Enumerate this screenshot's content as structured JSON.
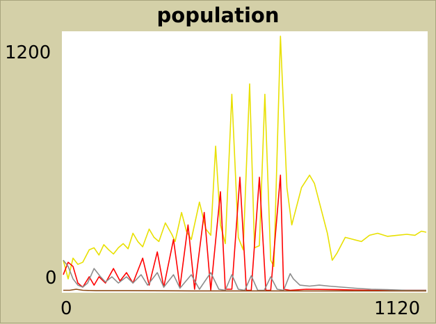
{
  "chart_data": {
    "type": "line",
    "title": "population",
    "xlim": [
      0,
      1120
    ],
    "ylim": [
      0,
      1200
    ],
    "x_tick_labels": [
      "0",
      "1120"
    ],
    "y_tick_labels": [
      "0",
      "1200"
    ],
    "series": [
      {
        "color": "#e8e000",
        "points": [
          [
            0,
            150
          ],
          [
            15,
            60
          ],
          [
            30,
            160
          ],
          [
            45,
            130
          ],
          [
            60,
            140
          ],
          [
            80,
            200
          ],
          [
            95,
            210
          ],
          [
            110,
            175
          ],
          [
            125,
            225
          ],
          [
            140,
            200
          ],
          [
            155,
            180
          ],
          [
            170,
            210
          ],
          [
            185,
            230
          ],
          [
            200,
            205
          ],
          [
            215,
            280
          ],
          [
            230,
            240
          ],
          [
            245,
            215
          ],
          [
            265,
            300
          ],
          [
            280,
            260
          ],
          [
            295,
            240
          ],
          [
            315,
            330
          ],
          [
            335,
            275
          ],
          [
            345,
            240
          ],
          [
            365,
            380
          ],
          [
            380,
            290
          ],
          [
            395,
            250
          ],
          [
            420,
            430
          ],
          [
            440,
            300
          ],
          [
            455,
            270
          ],
          [
            470,
            700
          ],
          [
            485,
            320
          ],
          [
            500,
            230
          ],
          [
            520,
            950
          ],
          [
            540,
            260
          ],
          [
            555,
            200
          ],
          [
            575,
            1000
          ],
          [
            590,
            210
          ],
          [
            605,
            220
          ],
          [
            622,
            950
          ],
          [
            640,
            150
          ],
          [
            650,
            120
          ],
          [
            670,
            1230
          ],
          [
            690,
            500
          ],
          [
            705,
            320
          ],
          [
            735,
            500
          ],
          [
            760,
            560
          ],
          [
            775,
            520
          ],
          [
            795,
            400
          ],
          [
            815,
            280
          ],
          [
            830,
            150
          ],
          [
            845,
            185
          ],
          [
            870,
            260
          ],
          [
            895,
            250
          ],
          [
            920,
            240
          ],
          [
            945,
            270
          ],
          [
            970,
            280
          ],
          [
            1000,
            265
          ],
          [
            1030,
            270
          ],
          [
            1060,
            275
          ],
          [
            1085,
            270
          ],
          [
            1105,
            290
          ],
          [
            1120,
            285
          ]
        ]
      },
      {
        "color": "#ff0000",
        "points": [
          [
            0,
            80
          ],
          [
            15,
            140
          ],
          [
            30,
            120
          ],
          [
            45,
            40
          ],
          [
            60,
            20
          ],
          [
            80,
            70
          ],
          [
            95,
            30
          ],
          [
            110,
            70
          ],
          [
            130,
            40
          ],
          [
            155,
            110
          ],
          [
            175,
            50
          ],
          [
            195,
            90
          ],
          [
            215,
            40
          ],
          [
            245,
            160
          ],
          [
            265,
            30
          ],
          [
            290,
            190
          ],
          [
            310,
            20
          ],
          [
            340,
            250
          ],
          [
            360,
            20
          ],
          [
            385,
            320
          ],
          [
            405,
            10
          ],
          [
            435,
            380
          ],
          [
            455,
            5
          ],
          [
            485,
            480
          ],
          [
            500,
            10
          ],
          [
            520,
            10
          ],
          [
            545,
            550
          ],
          [
            565,
            5
          ],
          [
            580,
            5
          ],
          [
            605,
            550
          ],
          [
            625,
            5
          ],
          [
            640,
            5
          ],
          [
            670,
            560
          ],
          [
            680,
            10
          ],
          [
            700,
            5
          ],
          [
            750,
            10
          ],
          [
            850,
            8
          ],
          [
            950,
            5
          ],
          [
            1050,
            5
          ],
          [
            1120,
            5
          ]
        ]
      },
      {
        "color": "#8c8c8c",
        "points": [
          [
            0,
            150
          ],
          [
            15,
            120
          ],
          [
            30,
            60
          ],
          [
            45,
            30
          ],
          [
            60,
            20
          ],
          [
            75,
            40
          ],
          [
            95,
            110
          ],
          [
            115,
            70
          ],
          [
            130,
            45
          ],
          [
            150,
            70
          ],
          [
            170,
            40
          ],
          [
            195,
            70
          ],
          [
            215,
            40
          ],
          [
            240,
            80
          ],
          [
            260,
            30
          ],
          [
            290,
            90
          ],
          [
            310,
            20
          ],
          [
            340,
            80
          ],
          [
            360,
            15
          ],
          [
            395,
            80
          ],
          [
            420,
            10
          ],
          [
            455,
            90
          ],
          [
            480,
            10
          ],
          [
            500,
            5
          ],
          [
            520,
            80
          ],
          [
            540,
            10
          ],
          [
            560,
            5
          ],
          [
            580,
            75
          ],
          [
            600,
            5
          ],
          [
            620,
            5
          ],
          [
            640,
            70
          ],
          [
            660,
            10
          ],
          [
            680,
            5
          ],
          [
            700,
            85
          ],
          [
            710,
            60
          ],
          [
            730,
            30
          ],
          [
            760,
            25
          ],
          [
            790,
            30
          ],
          [
            820,
            25
          ],
          [
            860,
            20
          ],
          [
            900,
            15
          ],
          [
            950,
            10
          ],
          [
            1000,
            8
          ],
          [
            1060,
            5
          ],
          [
            1120,
            5
          ]
        ]
      },
      {
        "color": "#8b4a14",
        "points": [
          [
            0,
            5
          ],
          [
            20,
            5
          ],
          [
            40,
            10
          ],
          [
            60,
            5
          ],
          [
            100,
            3
          ],
          [
            200,
            3
          ],
          [
            400,
            2
          ],
          [
            700,
            2
          ],
          [
            1120,
            2
          ]
        ]
      }
    ]
  }
}
